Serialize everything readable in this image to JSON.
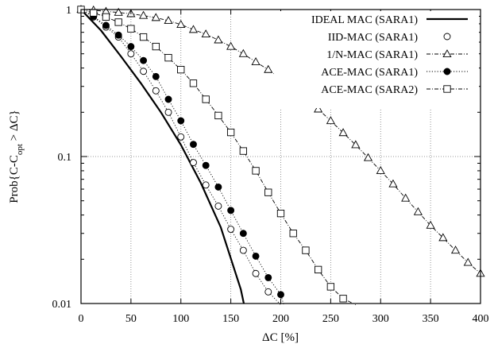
{
  "chart_data": {
    "type": "line",
    "xlabel": "ΔC [%]",
    "ylabel": "Prob{C-C",
    "ylabel_sub": "opt",
    "ylabel_tail": " > ΔC}",
    "xlim": [
      0,
      400
    ],
    "ylim": [
      0.01,
      1
    ],
    "yscale": "log",
    "grid": true,
    "legend_position": "top-right",
    "x_ticks": [
      "0",
      "50",
      "100",
      "150",
      "200",
      "250",
      "300",
      "350",
      "400"
    ],
    "y_ticks": [
      "0.01",
      "0.1",
      "1"
    ],
    "series": [
      {
        "name": "IDEAL MAC (SARA1)",
        "style": "solid",
        "marker": "none",
        "marker_fill": "none",
        "x": [
          0,
          20,
          40,
          60,
          80,
          100,
          120,
          140,
          160,
          163
        ],
        "y": [
          1.0,
          0.72,
          0.48,
          0.315,
          0.2,
          0.12,
          0.066,
          0.033,
          0.0125,
          0.01
        ]
      },
      {
        "name": "IID-MAC (SARA1)",
        "style": "dotted",
        "marker": "circle",
        "marker_fill": "none",
        "x": [
          0,
          12.5,
          25,
          37.5,
          50,
          62.5,
          75,
          87.5,
          100,
          112.5,
          125,
          137.5,
          150,
          162.5,
          175,
          187.5,
          200
        ],
        "y": [
          1.0,
          0.89,
          0.76,
          0.65,
          0.5,
          0.38,
          0.28,
          0.2,
          0.136,
          0.091,
          0.064,
          0.046,
          0.032,
          0.023,
          0.016,
          0.012,
          0.0098
        ]
      },
      {
        "name": "1/N-MAC (SARA1)",
        "style": "dashdot",
        "marker": "triangle",
        "marker_fill": "none",
        "x": [
          0,
          12.5,
          25,
          37.5,
          50,
          62.5,
          75,
          87.5,
          100,
          112.5,
          125,
          137.5,
          150,
          162.5,
          175,
          187.5,
          200,
          212.5,
          225,
          237.5,
          250,
          262.5,
          275,
          287.5,
          300,
          312.5,
          325,
          337.5,
          350,
          362.5,
          375,
          387.5,
          400
        ],
        "y": [
          1.0,
          0.99,
          0.97,
          0.955,
          0.935,
          0.91,
          0.88,
          0.84,
          0.79,
          0.73,
          0.68,
          0.62,
          0.56,
          0.5,
          0.44,
          0.39,
          0.34,
          0.29,
          0.25,
          0.21,
          0.175,
          0.145,
          0.12,
          0.098,
          0.08,
          0.065,
          0.052,
          0.042,
          0.034,
          0.028,
          0.023,
          0.019,
          0.016
        ]
      },
      {
        "name": "ACE-MAC (SARA1)",
        "style": "dotted",
        "marker": "circle",
        "marker_fill": "filled",
        "x": [
          0,
          12.5,
          25,
          37.5,
          50,
          62.5,
          75,
          87.5,
          100,
          112.5,
          125,
          137.5,
          150,
          162.5,
          175,
          187.5,
          200,
          203
        ],
        "y": [
          1.0,
          0.9,
          0.78,
          0.67,
          0.56,
          0.45,
          0.35,
          0.245,
          0.175,
          0.121,
          0.087,
          0.062,
          0.043,
          0.03,
          0.021,
          0.015,
          0.0115,
          0.0098
        ]
      },
      {
        "name": "ACE-MAC (SARA2)",
        "style": "dashdot",
        "marker": "square",
        "marker_fill": "none",
        "x": [
          0,
          12.5,
          25,
          37.5,
          50,
          62.5,
          75,
          87.5,
          100,
          112.5,
          125,
          137.5,
          150,
          162.5,
          175,
          187.5,
          200,
          212.5,
          225,
          237.5,
          250,
          262.5,
          275
        ],
        "y": [
          1.0,
          0.95,
          0.89,
          0.82,
          0.74,
          0.65,
          0.56,
          0.47,
          0.39,
          0.315,
          0.245,
          0.19,
          0.146,
          0.109,
          0.08,
          0.057,
          0.041,
          0.03,
          0.023,
          0.017,
          0.013,
          0.0108,
          0.0098
        ]
      }
    ]
  }
}
